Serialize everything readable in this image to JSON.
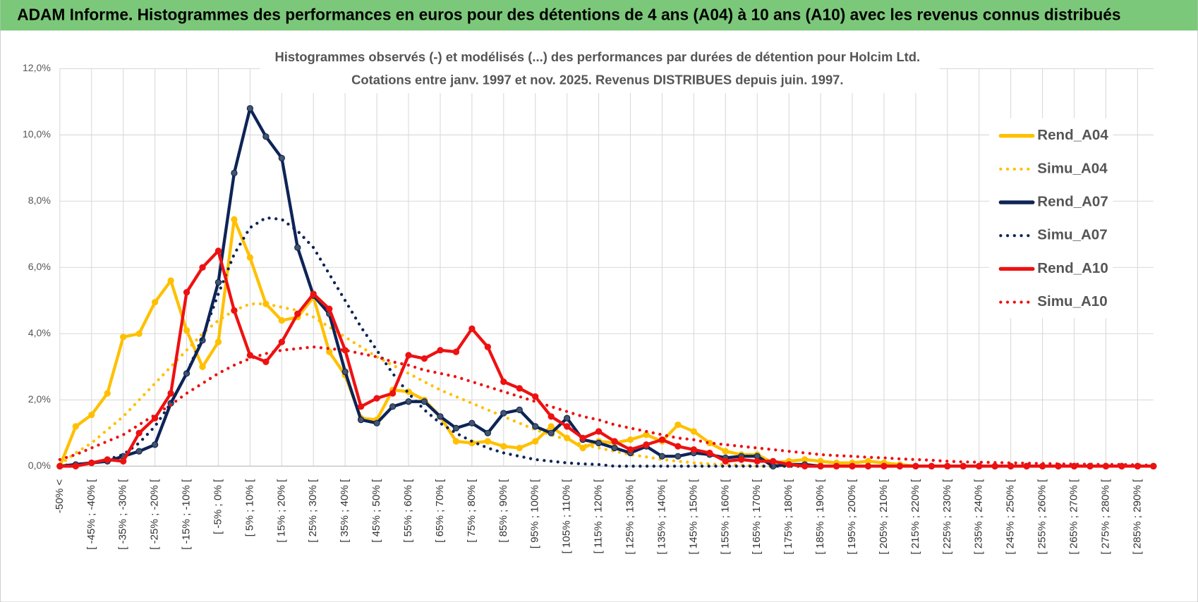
{
  "header": "ADAM Informe. Histogrammes des performances en euros pour des détentions de 4 ans (A04) à 10 ans (A10) avec les revenus connus distribués",
  "chart_data": {
    "type": "line",
    "title": "Histogrammes observés (-) et modélisés (...) des performances par durées de détention pour Holcim Ltd.",
    "subtitle": "Cotations entre janv. 1997 et nov. 2025. Revenus DISTRIBUES depuis juin. 1997.",
    "categories": [
      "-50% <",
      null,
      "[ -45% ; -40% [",
      null,
      "[ -35% ; -30% [",
      null,
      "[ -25% ; -20% [",
      null,
      "[ -15% ; -10% [",
      null,
      "[ -5% ; 0% [",
      null,
      "[ 5% ; 10% [",
      null,
      "[ 15% ; 20% [",
      null,
      "[ 25% ; 30% [",
      null,
      "[ 35% ; 40% [",
      null,
      "[ 45% ; 50% [",
      null,
      "[ 55% ; 60% [",
      null,
      "[ 65% ; 70% [",
      null,
      "[ 75% ; 80% [",
      null,
      "[ 85% ; 90% [",
      null,
      "[ 95% ; 100% [",
      null,
      "[ 105% ; 110% [",
      null,
      "[ 115% ; 120% [",
      null,
      "[ 125% ; 130% [",
      null,
      "[ 135% ; 140% [",
      null,
      "[ 145% ; 150% [",
      null,
      "[ 155% ; 160% [",
      null,
      "[ 165% ; 170% [",
      null,
      "[ 175% ; 180% [",
      null,
      "[ 185% ; 190% [",
      null,
      "[ 195% ; 200% [",
      null,
      "[ 205% ; 210% [",
      null,
      "[ 215% ; 220% [",
      null,
      "[ 225% ; 230% [",
      null,
      "[ 235% ; 240% [",
      null,
      "[ 245% ; 250% [",
      null,
      "[ 255% ; 260% [",
      null,
      "[ 265% ; 270% [",
      null,
      "[ 275% ; 280% [",
      null,
      "[ 285% ; 290% [",
      null
    ],
    "series": [
      {
        "name": "Rend_A04",
        "color": "#ffc000",
        "style": "solid",
        "values": [
          0,
          1.2,
          1.55,
          2.2,
          3.9,
          4.0,
          4.95,
          5.6,
          4.1,
          3.0,
          3.75,
          7.45,
          6.3,
          4.9,
          4.4,
          4.5,
          5.1,
          3.45,
          2.75,
          1.45,
          1.4,
          2.3,
          2.25,
          2.0,
          1.5,
          0.75,
          0.7,
          0.75,
          0.6,
          0.55,
          0.75,
          1.2,
          0.85,
          0.55,
          0.75,
          0.7,
          0.8,
          0.95,
          0.75,
          1.25,
          1.05,
          0.7,
          0.45,
          0.35,
          0.35,
          0.1,
          0.15,
          0.2,
          0.15,
          0.1,
          0.1,
          0.15,
          0.1,
          0.05,
          0,
          0,
          0,
          0,
          0,
          0,
          0,
          0,
          0,
          0,
          0,
          0,
          0,
          0,
          0,
          0
        ]
      },
      {
        "name": "Simu_A04",
        "color": "#ffc000",
        "style": "dotted",
        "values": [
          0.05,
          0.4,
          0.7,
          1.1,
          1.5,
          2.0,
          2.5,
          3.0,
          3.5,
          4.0,
          4.4,
          4.7,
          4.9,
          4.9,
          4.8,
          4.7,
          4.5,
          4.2,
          3.9,
          3.6,
          3.3,
          3.05,
          2.8,
          2.55,
          2.3,
          2.1,
          1.9,
          1.7,
          1.5,
          1.3,
          1.1,
          0.95,
          0.8,
          0.65,
          0.55,
          0.45,
          0.35,
          0.28,
          0.2,
          0.15,
          0.1,
          0.07,
          0.05,
          0.03,
          0,
          0,
          0,
          0,
          0,
          0,
          0,
          0,
          0,
          0,
          0,
          0,
          0,
          0,
          0,
          0,
          0,
          0,
          0,
          0,
          0,
          0,
          0,
          0,
          0,
          0
        ]
      },
      {
        "name": "Rend_A07",
        "color": "#0d2456",
        "style": "solid",
        "values": [
          0,
          0.05,
          0.1,
          0.15,
          0.3,
          0.45,
          0.65,
          1.9,
          2.8,
          3.8,
          5.55,
          8.85,
          10.8,
          9.95,
          9.3,
          6.6,
          5.15,
          4.6,
          2.85,
          1.4,
          1.3,
          1.8,
          1.95,
          1.95,
          1.5,
          1.15,
          1.3,
          1.0,
          1.6,
          1.7,
          1.2,
          1.0,
          1.45,
          0.8,
          0.7,
          0.55,
          0.4,
          0.6,
          0.3,
          0.3,
          0.4,
          0.35,
          0.25,
          0.3,
          0.3,
          0,
          0.05,
          0.05,
          0,
          0,
          0,
          0,
          0,
          0,
          0,
          0,
          0,
          0,
          0,
          0,
          0,
          0,
          0,
          0,
          0,
          0,
          0,
          0,
          0,
          0
        ]
      },
      {
        "name": "Simu_A07",
        "color": "#0d2456",
        "style": "dotted",
        "values": [
          0.02,
          0.05,
          0.1,
          0.2,
          0.35,
          0.7,
          1.2,
          1.9,
          2.8,
          3.9,
          5.2,
          6.4,
          7.2,
          7.5,
          7.45,
          7.1,
          6.6,
          5.8,
          5.0,
          4.2,
          3.5,
          2.8,
          2.2,
          1.7,
          1.3,
          1.0,
          0.75,
          0.55,
          0.4,
          0.3,
          0.2,
          0.15,
          0.1,
          0.07,
          0.05,
          0,
          0,
          0,
          0,
          0,
          0,
          0,
          0,
          0,
          0,
          0,
          0,
          0,
          0,
          0,
          0,
          0,
          0,
          0,
          0,
          0,
          0,
          0,
          0,
          0,
          0,
          0,
          0,
          0,
          0,
          0,
          0,
          0,
          0,
          0
        ]
      },
      {
        "name": "Rend_A10",
        "color": "#ee1111",
        "style": "solid",
        "values": [
          0,
          0,
          0.1,
          0.2,
          0.15,
          1.0,
          1.45,
          2.2,
          5.25,
          6.0,
          6.5,
          4.7,
          3.35,
          3.15,
          3.75,
          4.6,
          5.2,
          4.75,
          3.5,
          1.8,
          2.05,
          2.2,
          3.35,
          3.25,
          3.5,
          3.45,
          4.15,
          3.6,
          2.55,
          2.35,
          2.1,
          1.5,
          1.2,
          0.85,
          1.05,
          0.75,
          0.5,
          0.65,
          0.8,
          0.6,
          0.5,
          0.4,
          0.15,
          0.2,
          0.15,
          0.15,
          0.05,
          0,
          0,
          0,
          0,
          0,
          0,
          0,
          0,
          0,
          0,
          0,
          0,
          0,
          0,
          0,
          0,
          0,
          0,
          0,
          0,
          0,
          0,
          0
        ]
      },
      {
        "name": "Simu_A10",
        "color": "#ee1111",
        "style": "dotted",
        "values": [
          0.2,
          0.35,
          0.55,
          0.75,
          0.95,
          1.25,
          1.55,
          1.85,
          2.2,
          2.5,
          2.8,
          3.05,
          3.25,
          3.4,
          3.5,
          3.55,
          3.6,
          3.55,
          3.5,
          3.4,
          3.3,
          3.15,
          3.05,
          2.9,
          2.8,
          2.7,
          2.55,
          2.4,
          2.25,
          2.1,
          1.95,
          1.8,
          1.65,
          1.5,
          1.4,
          1.25,
          1.15,
          1.05,
          0.95,
          0.85,
          0.8,
          0.7,
          0.65,
          0.6,
          0.55,
          0.5,
          0.45,
          0.4,
          0.35,
          0.32,
          0.3,
          0.27,
          0.25,
          0.22,
          0.2,
          0.18,
          0.15,
          0.13,
          0.12,
          0.11,
          0.1,
          0.09,
          0.08,
          0.07,
          0.06,
          0.06,
          0.05,
          0.05,
          0.04,
          0.03
        ]
      }
    ],
    "ylim": [
      0,
      12
    ],
    "yticks": [
      {
        "value": 0,
        "label": "0,0%"
      },
      {
        "value": 2,
        "label": "2,0%"
      },
      {
        "value": 4,
        "label": "4,0%"
      },
      {
        "value": 6,
        "label": "6,0%"
      },
      {
        "value": 8,
        "label": "8,0%"
      },
      {
        "value": 10,
        "label": "10,0%"
      },
      {
        "value": 12,
        "label": "12,0%"
      }
    ],
    "grid": true,
    "legend": "right"
  }
}
